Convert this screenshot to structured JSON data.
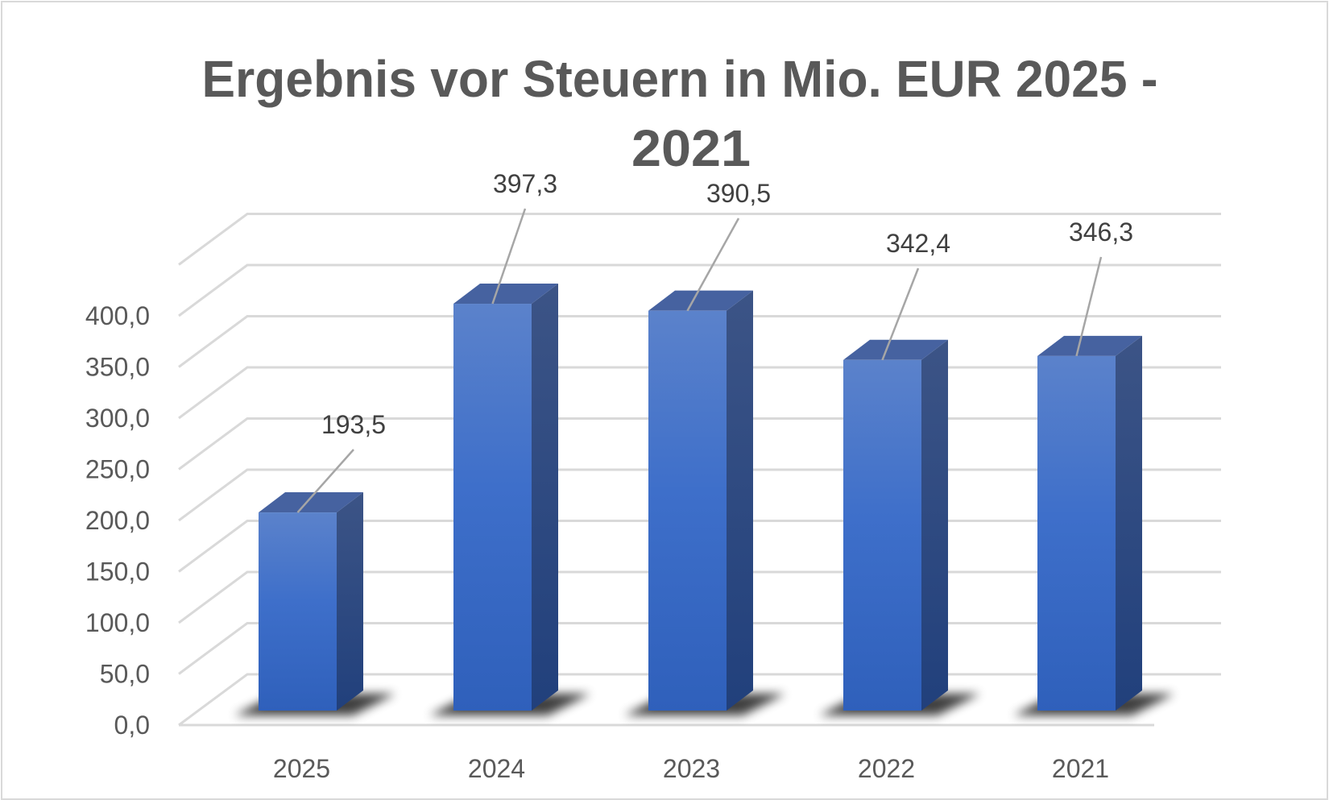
{
  "chart_data": {
    "type": "bar",
    "style": "3d-column",
    "title_lines": [
      "Ergebnis vor Steuern in Mio. EUR  2025 -",
      "2021"
    ],
    "title": "Ergebnis vor Steuern in Mio. EUR  2025 - 2021",
    "categories": [
      "2025",
      "2024",
      "2023",
      "2022",
      "2021"
    ],
    "values": [
      193.5,
      397.3,
      390.5,
      342.4,
      346.3
    ],
    "data_labels": [
      "193,5",
      "397,3",
      "390,5",
      "342,4",
      "346,3"
    ],
    "xlabel": "",
    "ylabel": "",
    "ylim": [
      0,
      450
    ],
    "y_ticks": [
      "0,0",
      "50,0",
      "100,0",
      "150,0",
      "200,0",
      "250,0",
      "300,0",
      "350,0",
      "400,0"
    ],
    "y_tick_values": [
      0,
      50,
      100,
      150,
      200,
      250,
      300,
      350,
      400
    ],
    "grid": true,
    "legend": "none",
    "colors": {
      "bar_front_top": "#5b82cb",
      "bar_front_bottom": "#2f60bb",
      "bar_side_top": "#3c5486",
      "bar_side_bottom": "#21407c",
      "bar_top": "#4662a0",
      "gridline": "#d9d9d9",
      "leader_line": "#a6a6a6",
      "text": "#595959"
    }
  }
}
